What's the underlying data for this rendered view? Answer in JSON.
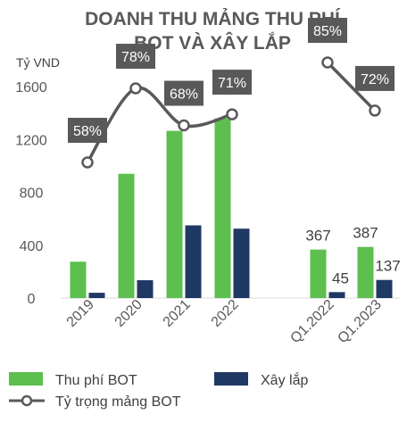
{
  "chart_data": {
    "type": "bar",
    "title_lines": [
      "DOANH THU MẢNG THU PHÍ",
      "BOT VÀ XÂY LẮP"
    ],
    "ylabel": "Tỷ VND",
    "ylim": [
      0,
      1600
    ],
    "yticks": [
      "0",
      "400",
      "800",
      "1200",
      "1600"
    ],
    "ytick_values": [
      0,
      400,
      800,
      1200,
      1600
    ],
    "categories": [
      "2019",
      "2020",
      "2021",
      "2022",
      "Q1.2022",
      "Q1.2023"
    ],
    "series": [
      {
        "name": "Thu phí BOT",
        "color": "#5cbf4e",
        "values": [
          275,
          940,
          1265,
          1360,
          367,
          387
        ]
      },
      {
        "name": "Xây lắp",
        "color": "#1f3864",
        "values": [
          40,
          135,
          550,
          525,
          45,
          137
        ]
      }
    ],
    "line_series": {
      "name": "Tỷ trọng mảng BOT",
      "color": "#595959",
      "segments": [
        {
          "categories": [
            "2019",
            "2020",
            "2021",
            "2022"
          ],
          "values": [
            58,
            78,
            68,
            71
          ],
          "labels": [
            "58%",
            "78%",
            "68%",
            "71%"
          ]
        },
        {
          "categories": [
            "Q1.2022",
            "Q1.2023"
          ],
          "values": [
            85,
            72
          ],
          "labels": [
            "85%",
            "72%"
          ]
        }
      ]
    },
    "bar_data_labels": {
      "Q1.2022": [
        "367",
        "45"
      ],
      "Q1.2023": [
        "387",
        "137"
      ]
    },
    "legend": [
      "Thu phí BOT",
      "Xây lắp",
      "Tỷ trọng mảng BOT"
    ],
    "legend_position": "bottom"
  }
}
